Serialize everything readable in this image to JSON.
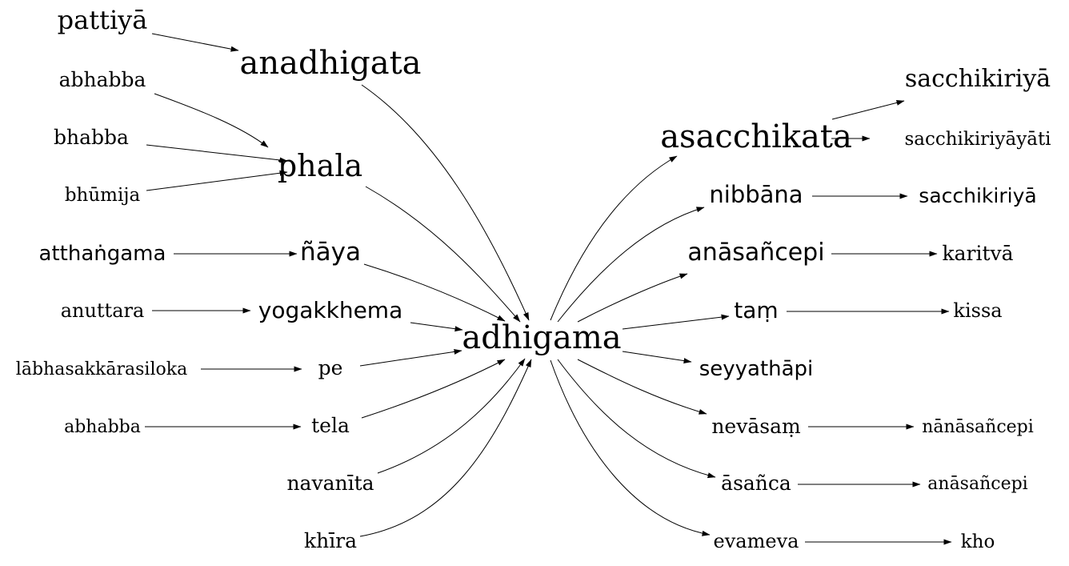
{
  "diagram": {
    "center": "adhigama",
    "nodes": {
      "pattiya": "pattiyā",
      "anadhigata": "anadhigata",
      "abhabba_1": "abhabba",
      "bhabba": "bhabba",
      "bhumija": "bhūmija",
      "phala": "phala",
      "atthangama": "atthaṅgama",
      "naya": "ñāya",
      "anuttara": "anuttara",
      "yogakkhema": "yogakkhema",
      "labhasakkarasiloka": "lābhasakkārasiloka",
      "pe": "pe",
      "abhabba_2": "abhabba",
      "tela": "tela",
      "navanita": "navanīta",
      "khira": "khīra",
      "adhigama": "adhigama",
      "asacchikata": "asacchikata",
      "sacchikiriya_1": "sacchikiriyā",
      "sacchikiriyayati": "sacchikiriyāyāti",
      "nibbana": "nibbāna",
      "sacchikiriya_2": "sacchikiriyā",
      "anasancepi_1": "anāsañcepi",
      "karitva": "karitvā",
      "tam": "taṃ",
      "kissa": "kissa",
      "seyyathapi": "seyyathāpi",
      "nevasam": "nevāsaṃ",
      "nanasancepi": "nānāsañcepi",
      "asanca": "āsañca",
      "anasancepi_2": "anāsañcepi",
      "evameva": "evameva",
      "kho": "kho"
    },
    "edges": [
      [
        "pattiya",
        "anadhigata"
      ],
      [
        "anadhigata",
        "adhigama"
      ],
      [
        "abhabba_1",
        "phala"
      ],
      [
        "bhabba",
        "phala"
      ],
      [
        "bhumija",
        "phala"
      ],
      [
        "phala",
        "adhigama"
      ],
      [
        "atthangama",
        "naya"
      ],
      [
        "naya",
        "adhigama"
      ],
      [
        "anuttara",
        "yogakkhema"
      ],
      [
        "yogakkhema",
        "adhigama"
      ],
      [
        "labhasakkarasiloka",
        "pe"
      ],
      [
        "pe",
        "adhigama"
      ],
      [
        "abhabba_2",
        "tela"
      ],
      [
        "tela",
        "adhigama"
      ],
      [
        "navanita",
        "adhigama"
      ],
      [
        "khira",
        "adhigama"
      ],
      [
        "adhigama",
        "asacchikata"
      ],
      [
        "asacchikata",
        "sacchikiriya_1"
      ],
      [
        "asacchikata",
        "sacchikiriyayati"
      ],
      [
        "adhigama",
        "nibbana"
      ],
      [
        "nibbana",
        "sacchikiriya_2"
      ],
      [
        "adhigama",
        "anasancepi_1"
      ],
      [
        "anasancepi_1",
        "karitva"
      ],
      [
        "adhigama",
        "tam"
      ],
      [
        "tam",
        "kissa"
      ],
      [
        "adhigama",
        "seyyathapi"
      ],
      [
        "adhigama",
        "nevasam"
      ],
      [
        "nevasam",
        "nanasancepi"
      ],
      [
        "adhigama",
        "asanca"
      ],
      [
        "asanca",
        "anasancepi_2"
      ],
      [
        "adhigama",
        "evameva"
      ],
      [
        "evameva",
        "kho"
      ]
    ]
  }
}
